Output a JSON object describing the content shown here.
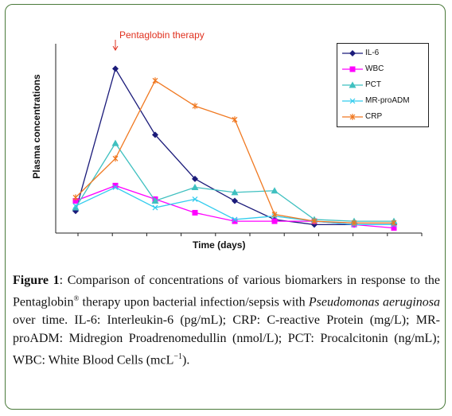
{
  "chart_data": {
    "type": "line",
    "annotation": "Pentaglobin therapy",
    "annotation_x": 2,
    "xlabel": "Time (days)",
    "ylabel": "Plasma concentrations",
    "x": [
      1,
      2,
      3,
      4,
      5,
      6,
      7,
      8,
      9
    ],
    "ylim": [
      0,
      100
    ],
    "xlim": [
      0.5,
      9.7
    ],
    "legend_position": "top-right",
    "series": [
      {
        "name": "IL-6",
        "color": "#1b1b7a",
        "marker": "diamond",
        "values": [
          13,
          97,
          58,
          32,
          19,
          8,
          5,
          5,
          5
        ]
      },
      {
        "name": "WBC",
        "color": "#ff00ff",
        "marker": "square",
        "values": [
          19,
          28,
          20,
          12,
          7,
          7,
          7,
          5,
          3
        ]
      },
      {
        "name": "PCT",
        "color": "#3fc0c0",
        "marker": "triangle",
        "values": [
          15,
          53,
          19,
          27,
          24,
          25,
          8,
          7,
          7
        ]
      },
      {
        "name": "MR-proADM",
        "color": "#33ccee",
        "marker": "x",
        "values": [
          16,
          27,
          15,
          20,
          8,
          10,
          7,
          5,
          5
        ]
      },
      {
        "name": "CRP",
        "color": "#f07820",
        "marker": "asterisk",
        "values": [
          21,
          44,
          90,
          75,
          67,
          11,
          7,
          6,
          6
        ]
      }
    ]
  },
  "caption": {
    "label": "Figure 1",
    "text1": ": Comparison of concentrations of various biomarkers in response to the Pentaglobin",
    "sup": "®",
    "text2": " therapy upon bacterial infection/sepsis with ",
    "italic": "Pseudomonas aeruginosa",
    "text3": " over time. IL-6: Interleukin-6 (pg/mL); CRP: C-reactive Protein (mg/L); MR-proADM: Midregion Proadrenomedullin (nmol/L); PCT: Procalcitonin (ng/mL); WBC: White Blood Cells (mcL",
    "sup2": "−1",
    "text4": ")."
  }
}
